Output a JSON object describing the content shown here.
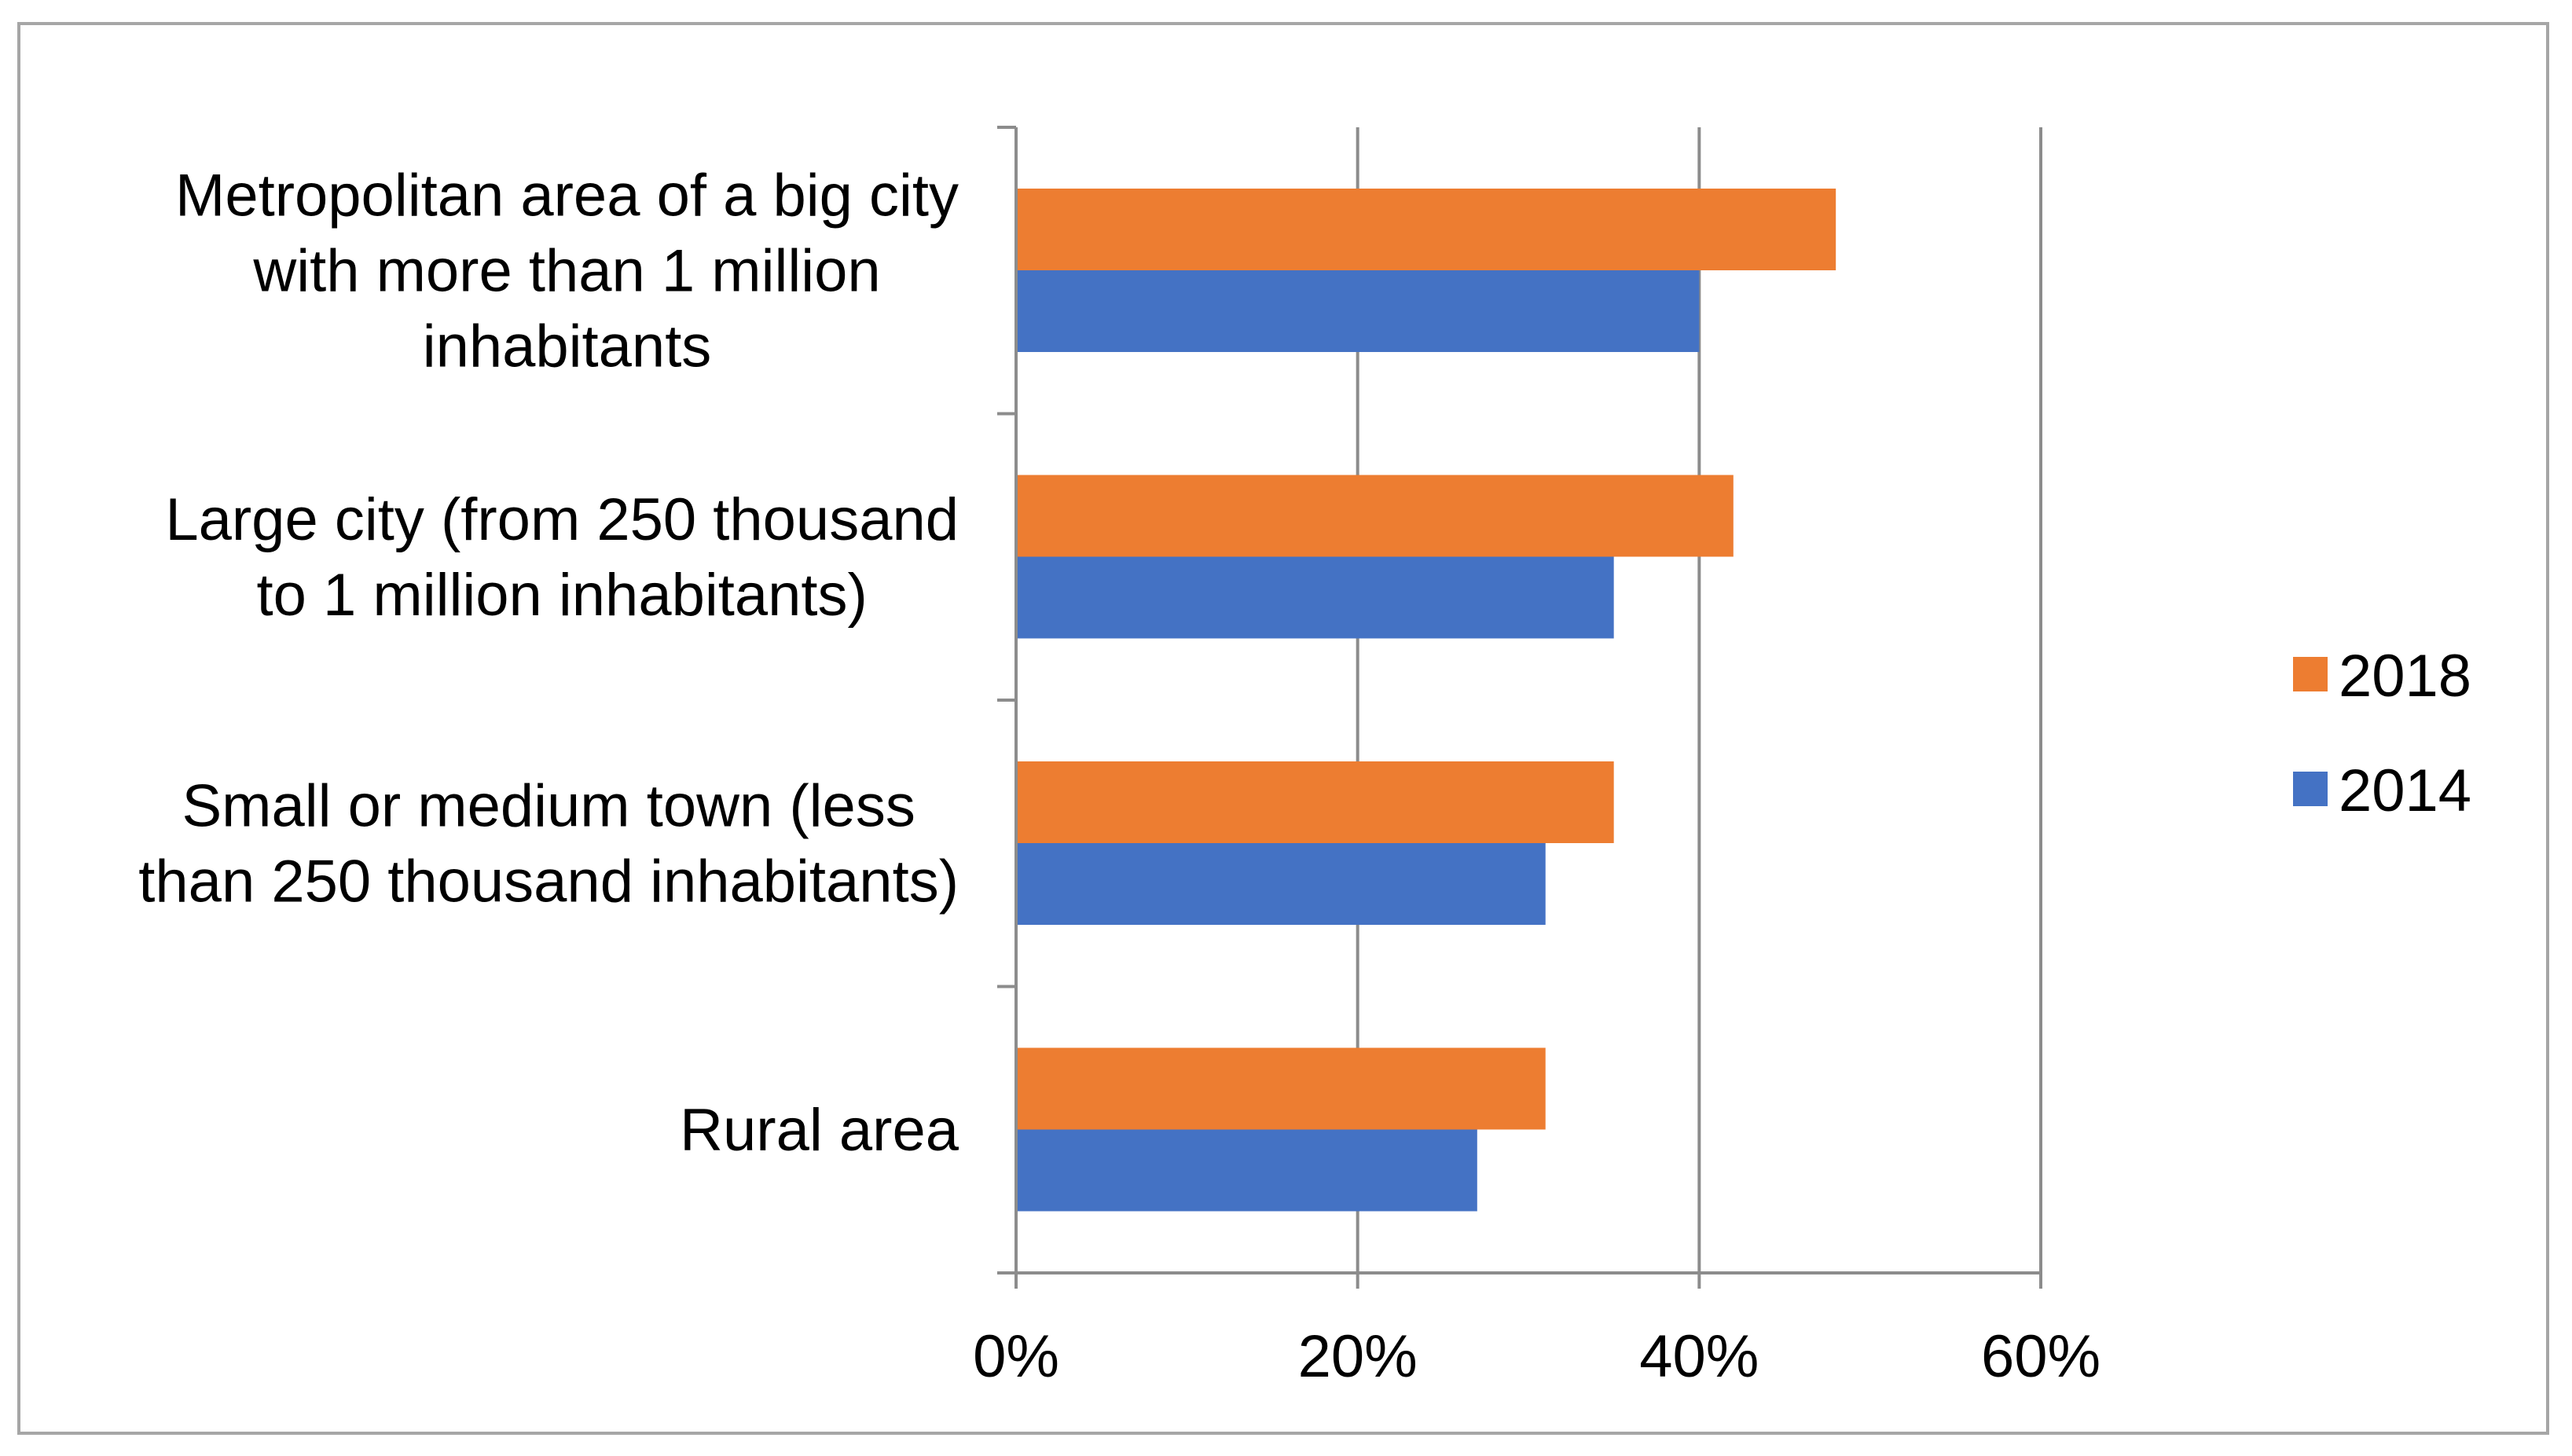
{
  "chart_data": {
    "type": "bar",
    "orientation": "horizontal",
    "title": "",
    "xlabel": "",
    "ylabel": "",
    "xlim": [
      0,
      60
    ],
    "x_ticks": [
      0,
      20,
      40,
      60
    ],
    "x_tick_labels": [
      "0%",
      "20%",
      "40%",
      "60%"
    ],
    "grid": true,
    "legend_position": "right",
    "categories": [
      "Metropolitan area of a big city with more than 1 million inhabitants",
      "Large city (from 250 thousand to 1 million inhabitants)",
      "Small or medium town (less than 250 thousand inhabitants)",
      "Rural area"
    ],
    "category_label_lines": [
      [
        "Metropolitan area of a big city",
        "with more than 1 million",
        "inhabitants"
      ],
      [
        "Large city (from 250 thousand",
        "to 1 million inhabitants)"
      ],
      [
        "Small or medium town (less",
        "than 250 thousand inhabitants)"
      ],
      [
        "Rural area"
      ]
    ],
    "series": [
      {
        "name": "2018",
        "color": "#ED7D31",
        "values": [
          48,
          42,
          35,
          31
        ]
      },
      {
        "name": "2014",
        "color": "#4472C4",
        "values": [
          40,
          35,
          31,
          27
        ]
      }
    ]
  }
}
